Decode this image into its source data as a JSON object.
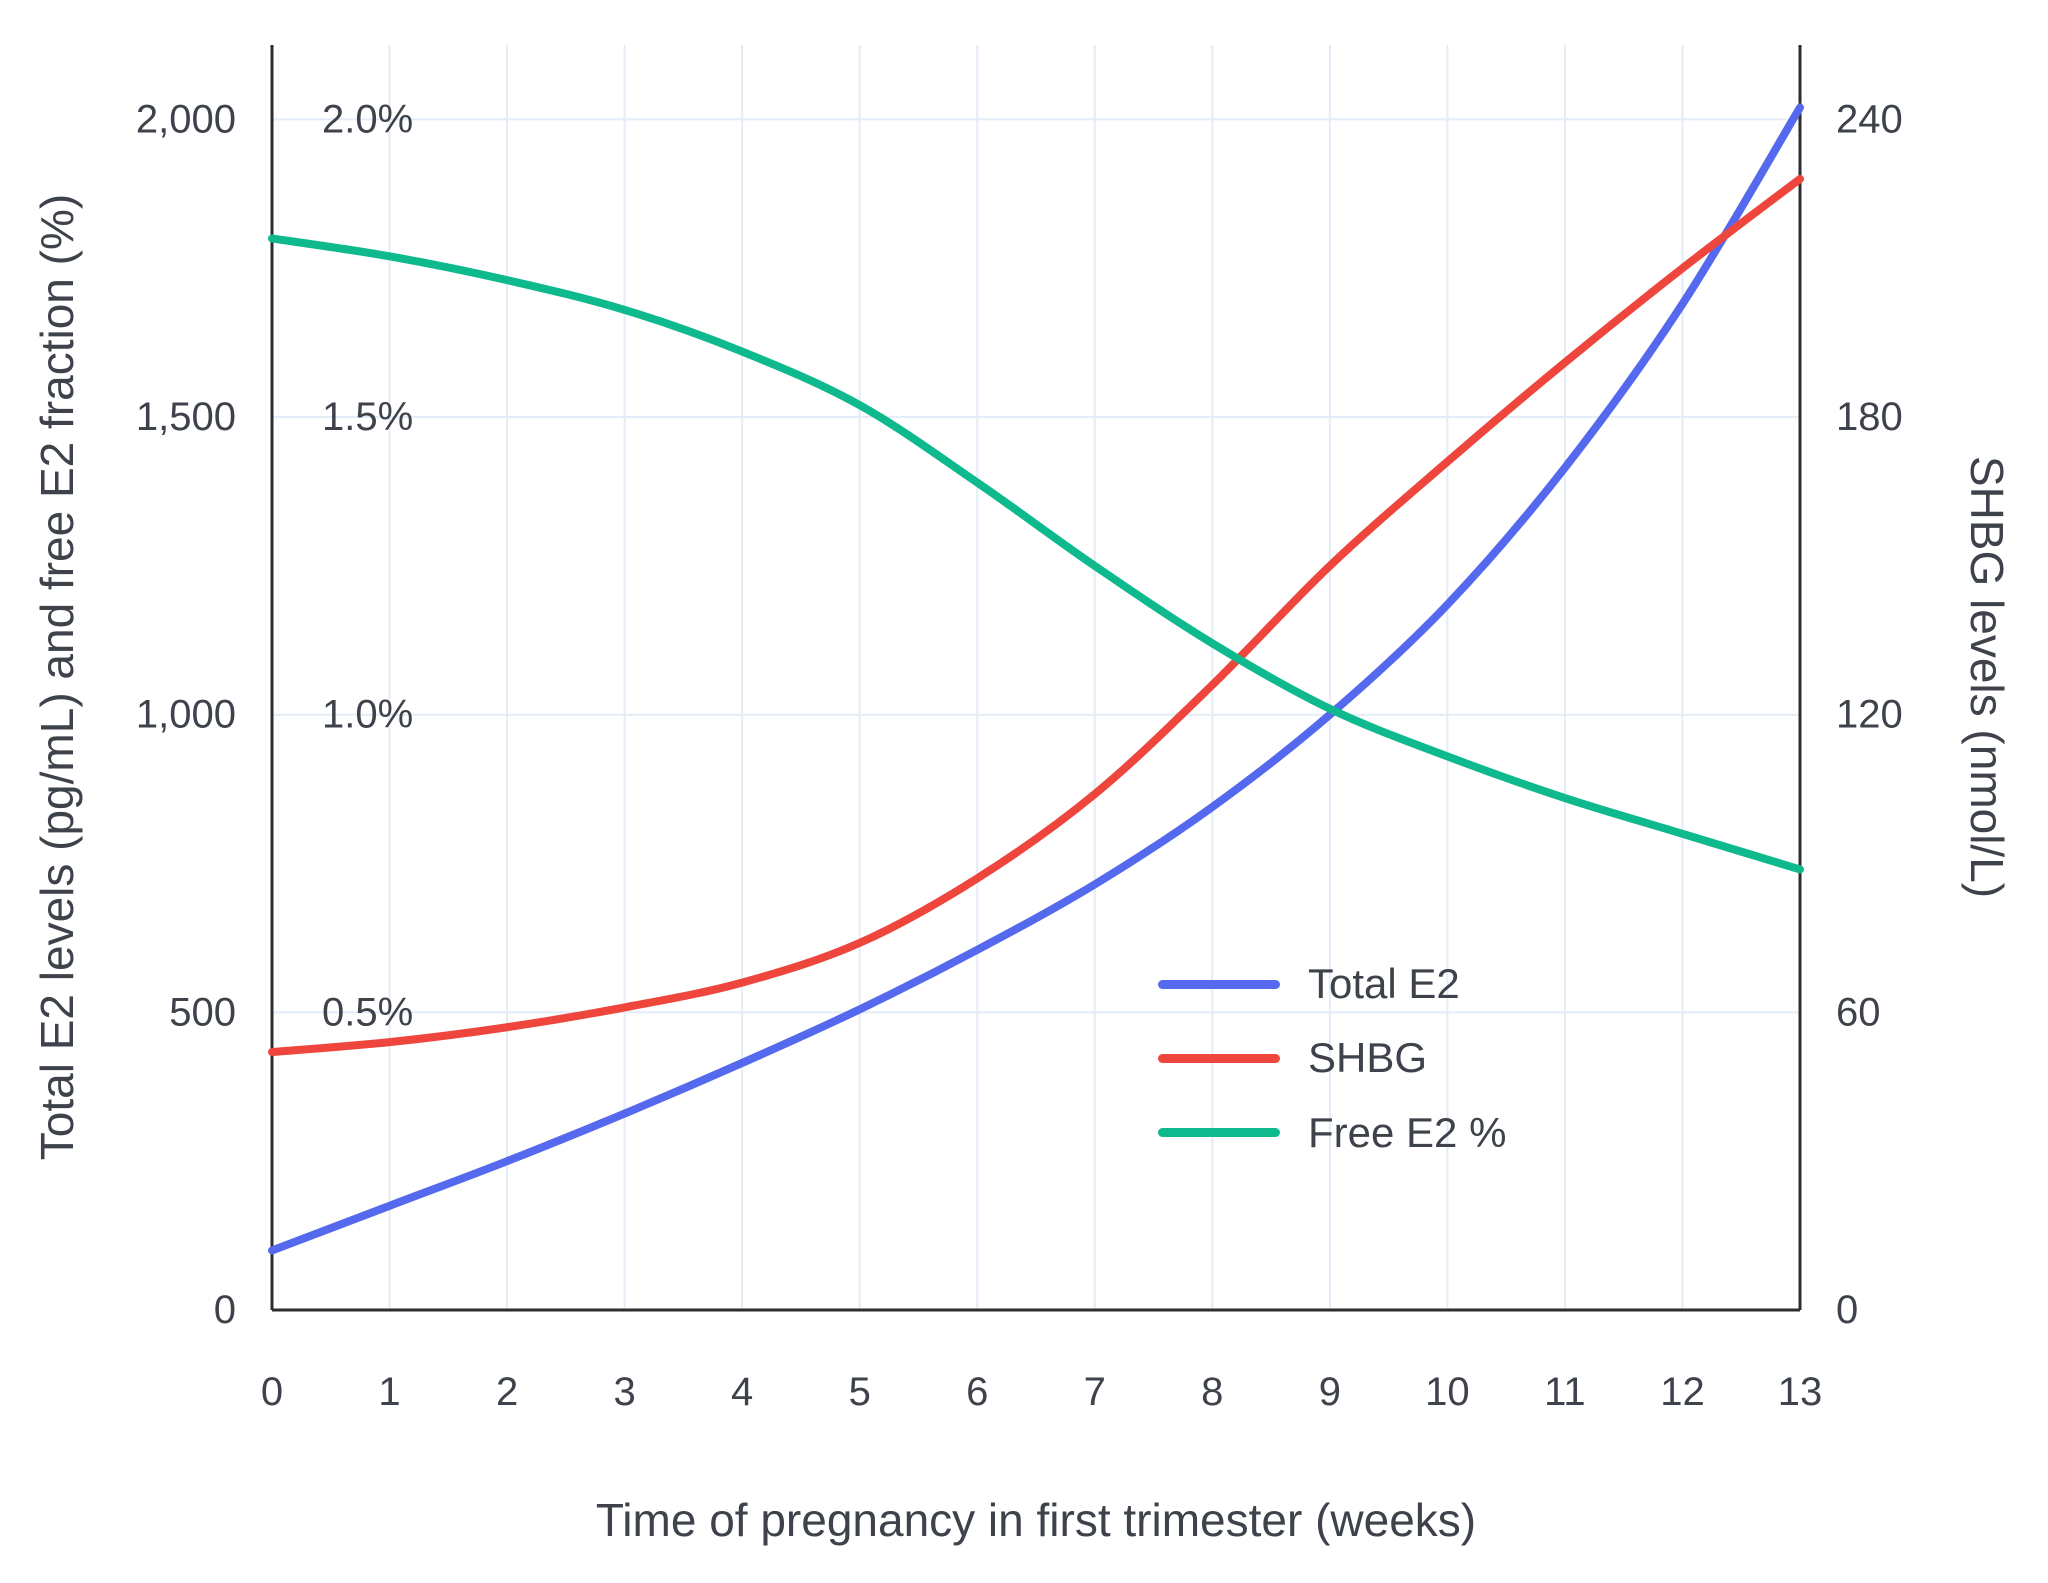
{
  "chart_data": {
    "type": "line",
    "title": "",
    "xlabel": "Time of pregnancy in first trimester (weeks)",
    "ylabel_left": "Total E2 levels (pg/mL) and free E2 fraction (%)",
    "ylabel_right": "SHBG levels (nmol/L)",
    "x": [
      0,
      1,
      2,
      3,
      4,
      5,
      6,
      7,
      8,
      9,
      10,
      11,
      12,
      13
    ],
    "x_tick_labels": [
      "0",
      "1",
      "2",
      "3",
      "4",
      "5",
      "6",
      "7",
      "8",
      "9",
      "10",
      "11",
      "12",
      "13"
    ],
    "x_range": [
      0,
      13
    ],
    "grid": true,
    "grid_color": "#e4ecf7",
    "axis_line_color": "#2e2e2e",
    "text_color": "#3d424b",
    "left_axis": {
      "range": [
        0,
        2125
      ],
      "ticks": [
        0,
        500,
        1000,
        1500,
        2000
      ],
      "tick_labels": [
        "0",
        "500",
        "1,000",
        "1,500",
        "2,000"
      ],
      "pct_ticks": [
        500,
        1000,
        1500,
        2000
      ],
      "pct_labels": [
        "0.5%",
        "1.0%",
        "1.5%",
        "2.0%"
      ]
    },
    "right_axis": {
      "range": [
        0,
        255
      ],
      "ticks": [
        0,
        60,
        120,
        180,
        240
      ],
      "tick_labels": [
        "0",
        "60",
        "120",
        "180",
        "240"
      ]
    },
    "pct_axis_range": [
      0,
      2.125
    ],
    "legend_position": "inside-right",
    "series": [
      {
        "name": "Total E2",
        "axis": "left",
        "unit": "pg/mL",
        "color": "#5569ef",
        "values": [
          100,
          175,
          250,
          330,
          415,
          505,
          605,
          715,
          845,
          1000,
          1185,
          1415,
          1690,
          2020
        ]
      },
      {
        "name": "SHBG",
        "axis": "right",
        "unit": "nmol/L",
        "color": "#ee453c",
        "values": [
          52,
          54,
          57,
          61,
          66,
          74,
          87,
          104,
          126,
          150,
          171,
          191,
          210,
          228
        ]
      },
      {
        "name": "Free E2 %",
        "axis": "pct",
        "unit": "%",
        "color": "#0eb98d",
        "values": [
          1.8,
          1.77,
          1.73,
          1.68,
          1.61,
          1.52,
          1.39,
          1.25,
          1.12,
          1.01,
          0.93,
          0.86,
          0.8,
          0.74
        ]
      }
    ]
  }
}
